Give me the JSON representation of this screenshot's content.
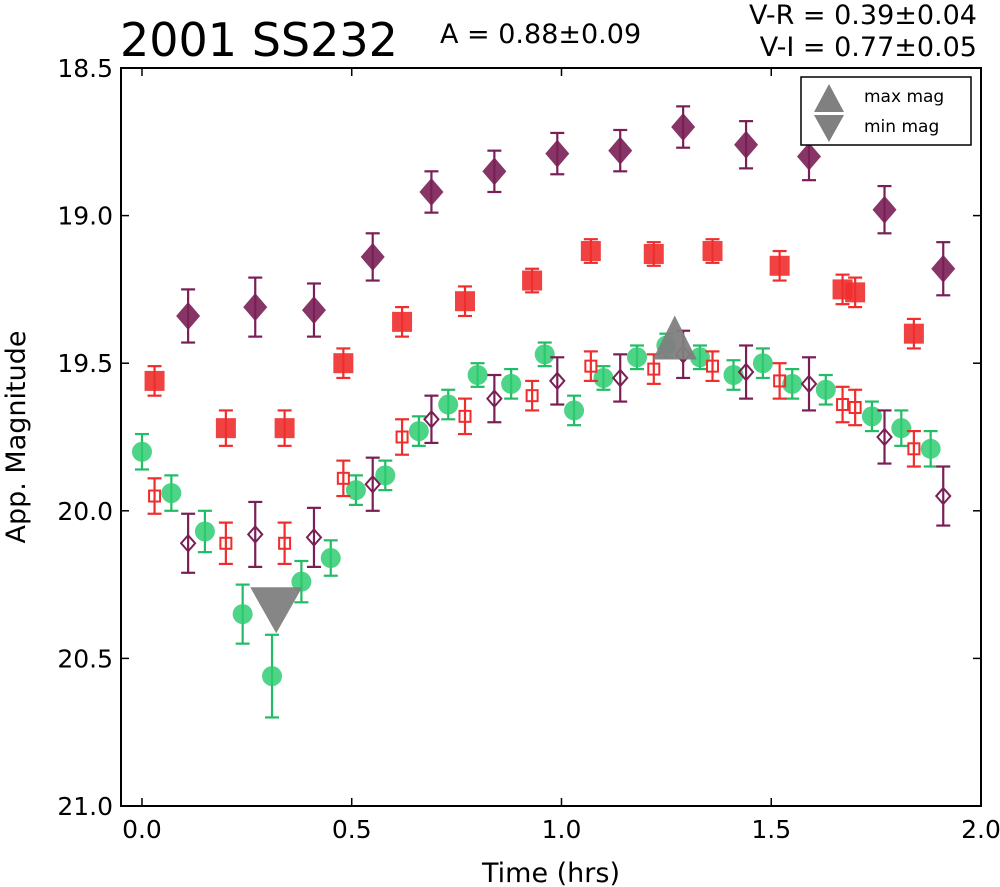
{
  "chart_data": {
    "type": "scatter",
    "title": "2001 SS232",
    "amplitude_text": "A  = 0.88±0.09",
    "color_text_1": "V-R = 0.39±0.04",
    "color_text_2": "V-I  = 0.77±0.05",
    "xlabel": "Time (hrs)",
    "ylabel": "App. Magnitude",
    "xlim": [
      -0.05,
      2.0
    ],
    "ylim": [
      21.0,
      18.5
    ],
    "y_inverted": true,
    "x_ticks": [
      "0.0",
      "0.5",
      "1.0",
      "1.5",
      "2.0"
    ],
    "y_ticks": [
      "18.5",
      "19.0",
      "19.5",
      "20.0",
      "20.5",
      "21.0"
    ],
    "grid": false,
    "legend_position": "top-right",
    "legend": [
      {
        "label": "max mag",
        "marker": "triangle-up"
      },
      {
        "label": "min mag",
        "marker": "triangle-down"
      }
    ],
    "colors": {
      "green": "#2ecc71",
      "green_err": "#22bb66",
      "red": "#f02d2d",
      "purple": "#7a1f55",
      "gray": "#808080"
    },
    "series": [
      {
        "marker": "filled-diamond",
        "color": "#7a1f55",
        "x": [
          0.11,
          0.27,
          0.41,
          0.55,
          0.69,
          0.84,
          0.99,
          1.14,
          1.29,
          1.44,
          1.59,
          1.77,
          1.91
        ],
        "y": [
          19.34,
          19.31,
          19.32,
          19.14,
          18.92,
          18.85,
          18.79,
          18.78,
          18.7,
          18.76,
          18.8,
          18.98,
          19.18
        ],
        "err": [
          0.09,
          0.1,
          0.09,
          0.08,
          0.07,
          0.07,
          0.07,
          0.07,
          0.07,
          0.08,
          0.08,
          0.08,
          0.09
        ]
      },
      {
        "marker": "filled-square",
        "color": "#f02d2d",
        "x": [
          0.03,
          0.2,
          0.34,
          0.48,
          0.62,
          0.77,
          0.93,
          1.07,
          1.22,
          1.36,
          1.52,
          1.67,
          1.7,
          1.84
        ],
        "y": [
          19.56,
          19.72,
          19.72,
          19.5,
          19.36,
          19.29,
          19.22,
          19.12,
          19.13,
          19.12,
          19.17,
          19.25,
          19.26,
          19.4
        ],
        "err": [
          0.05,
          0.06,
          0.06,
          0.05,
          0.05,
          0.05,
          0.04,
          0.04,
          0.04,
          0.04,
          0.05,
          0.05,
          0.05,
          0.05
        ]
      },
      {
        "marker": "filled-circle",
        "color": "#2ecc71",
        "x": [
          0.0,
          0.07,
          0.15,
          0.24,
          0.31,
          0.38,
          0.45,
          0.51,
          0.58,
          0.66,
          0.73,
          0.8,
          0.88,
          0.96,
          1.03,
          1.1,
          1.18,
          1.25,
          1.33,
          1.41,
          1.48,
          1.55,
          1.63,
          1.74,
          1.81,
          1.88
        ],
        "y": [
          19.8,
          19.94,
          20.07,
          20.35,
          20.56,
          20.24,
          20.16,
          19.93,
          19.88,
          19.73,
          19.64,
          19.54,
          19.57,
          19.47,
          19.66,
          19.55,
          19.48,
          19.44,
          19.48,
          19.54,
          19.5,
          19.57,
          19.59,
          19.68,
          19.72,
          19.79
        ],
        "err": [
          0.06,
          0.06,
          0.07,
          0.1,
          0.14,
          0.07,
          0.06,
          0.05,
          0.05,
          0.05,
          0.05,
          0.04,
          0.05,
          0.04,
          0.05,
          0.04,
          0.04,
          0.04,
          0.04,
          0.05,
          0.05,
          0.05,
          0.05,
          0.05,
          0.06,
          0.06
        ]
      },
      {
        "marker": "open-square",
        "color": "#f02d2d",
        "x": [
          0.03,
          0.2,
          0.34,
          0.48,
          0.62,
          0.77,
          0.93,
          1.07,
          1.22,
          1.36,
          1.52,
          1.67,
          1.7,
          1.84
        ],
        "y": [
          19.95,
          20.11,
          20.11,
          19.89,
          19.75,
          19.68,
          19.61,
          19.51,
          19.52,
          19.51,
          19.56,
          19.64,
          19.65,
          19.79
        ],
        "err": [
          0.06,
          0.07,
          0.07,
          0.06,
          0.06,
          0.06,
          0.05,
          0.05,
          0.05,
          0.05,
          0.06,
          0.06,
          0.06,
          0.06
        ]
      },
      {
        "marker": "open-diamond",
        "color": "#7a1f55",
        "x": [
          0.11,
          0.27,
          0.41,
          0.55,
          0.69,
          0.84,
          0.99,
          1.14,
          1.29,
          1.44,
          1.59,
          1.77,
          1.91
        ],
        "y": [
          20.11,
          20.08,
          20.09,
          19.91,
          19.69,
          19.62,
          19.56,
          19.55,
          19.47,
          19.53,
          19.57,
          19.75,
          19.95
        ],
        "err": [
          0.1,
          0.11,
          0.1,
          0.09,
          0.08,
          0.08,
          0.08,
          0.08,
          0.08,
          0.09,
          0.09,
          0.09,
          0.1
        ]
      },
      {
        "marker": "triangle-up",
        "color": "#808080",
        "x": [
          1.27
        ],
        "y": [
          19.44
        ],
        "err": [
          0
        ]
      },
      {
        "marker": "triangle-down",
        "color": "#808080",
        "x": [
          0.32
        ],
        "y": [
          20.32
        ],
        "err": [
          0
        ]
      }
    ]
  }
}
